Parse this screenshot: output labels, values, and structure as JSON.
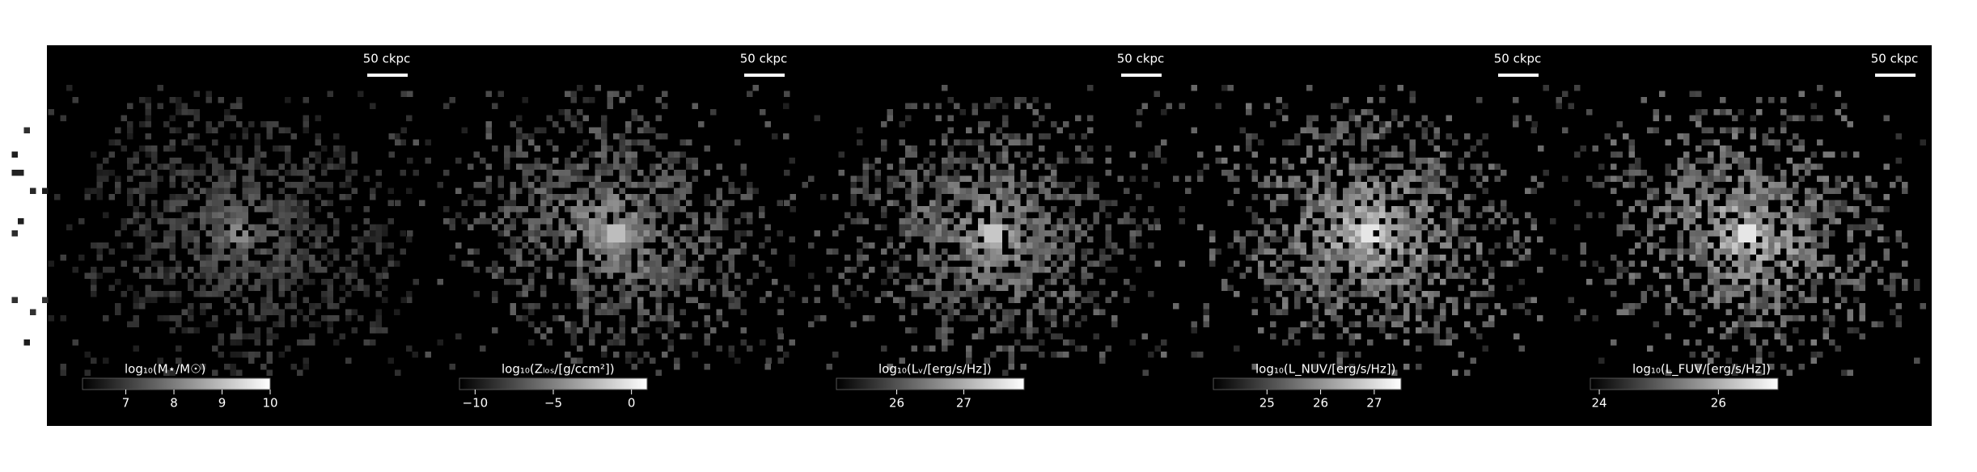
{
  "panels": [
    {
      "scale_bar": "50 ckpc",
      "colorbar_label": "log₁₀(M⋆/M☉)",
      "clim": [
        6.1,
        10
      ],
      "ticks": [
        7,
        8,
        9,
        10
      ],
      "brightness": 0.55
    },
    {
      "scale_bar": "50 ckpc",
      "colorbar_label": "log₁₀(Zₗₒₛ/[g/ccm²])",
      "clim": [
        -11,
        1
      ],
      "ticks": [
        {
          "value": -10,
          "label": "−10"
        },
        {
          "value": -5,
          "label": "−5"
        },
        0
      ],
      "brightness": 0.8
    },
    {
      "scale_bar": "50 ckpc",
      "colorbar_label": "log₁₀(Lᵥ/[erg/s/Hz])",
      "clim": [
        25.1,
        27.9
      ],
      "ticks": [
        26,
        27
      ],
      "brightness": 0.85
    },
    {
      "scale_bar": "50 ckpc",
      "colorbar_label": "log₁₀(L_NUV/[erg/s/Hz])",
      "clim": [
        24,
        27.5
      ],
      "ticks": [
        25,
        26,
        27
      ],
      "brightness": 1
    },
    {
      "scale_bar": "50 ckpc",
      "colorbar_label": "log₁₀(L_FUV/[erg/s/Hz])",
      "clim": [
        23.85,
        27
      ],
      "ticks": [
        24,
        26
      ],
      "brightness": 1
    }
  ]
}
